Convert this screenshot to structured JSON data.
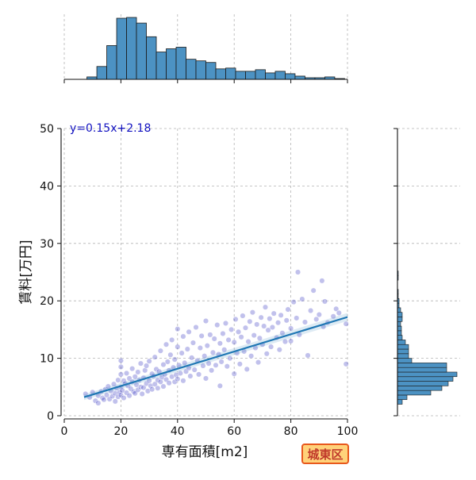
{
  "chart_data": {
    "type": "scatter",
    "xlabel": "専有面積[m2]",
    "ylabel": "賃料[万円]",
    "xlim": [
      0,
      100
    ],
    "ylim": [
      0,
      50
    ],
    "x_ticks": [
      "0",
      "20",
      "40",
      "60",
      "80",
      "100"
    ],
    "y_ticks": [
      "0",
      "10",
      "20",
      "30",
      "40",
      "50"
    ],
    "grid": true,
    "annotation": "y=0.15x+2.18",
    "regression": {
      "slope": 0.15,
      "intercept": 2.18,
      "x_range": [
        7,
        100
      ]
    },
    "point_color": "#2222bb",
    "line_color": "#1f77b4",
    "hist_color": "#4c92c3",
    "marginal_x": {
      "bin_width": 3.5,
      "bin_starts": [
        8,
        11.5,
        15,
        18.5,
        22,
        25.5,
        29,
        32.5,
        36,
        39.5,
        43,
        46.5,
        50,
        53.5,
        57,
        60.5,
        64,
        67.5,
        71,
        74.5,
        78,
        81.5,
        85,
        88.5,
        92,
        95.5
      ],
      "counts": [
        3,
        16,
        42,
        76,
        77,
        70,
        53,
        34,
        38,
        40,
        25,
        23,
        21,
        13,
        14,
        10,
        10,
        12,
        8,
        10,
        7,
        4,
        2,
        2,
        3,
        1
      ]
    },
    "marginal_y": {
      "bin_width": 0.8,
      "bin_starts": [
        2,
        2.8,
        3.6,
        4.4,
        5.2,
        6,
        6.8,
        7.6,
        8.4,
        9.2,
        10,
        10.8,
        11.6,
        12.4,
        13.2,
        14,
        14.8,
        15.6,
        16.4,
        17.2,
        18,
        18.8,
        19.6,
        20.4,
        21.2,
        22,
        22.8,
        23.6,
        24.4
      ],
      "counts": [
        6,
        12,
        42,
        56,
        64,
        70,
        75,
        62,
        62,
        18,
        14,
        14,
        14,
        10,
        6,
        5,
        5,
        4,
        6,
        6,
        4,
        2,
        2,
        1,
        1,
        0,
        0,
        1,
        1
      ]
    },
    "points": [
      [
        7.5,
        3.8
      ],
      [
        9,
        3.2
      ],
      [
        10,
        4.1
      ],
      [
        11,
        2.6
      ],
      [
        12,
        3.5
      ],
      [
        12,
        2.2
      ],
      [
        13,
        4.2
      ],
      [
        13.5,
        3.1
      ],
      [
        14,
        2.8
      ],
      [
        14.5,
        4.6
      ],
      [
        15,
        3.6
      ],
      [
        15.5,
        5.1
      ],
      [
        16,
        2.9
      ],
      [
        16.5,
        4.3
      ],
      [
        17,
        3.4
      ],
      [
        17.5,
        5.5
      ],
      [
        18,
        3.9
      ],
      [
        18,
        2.5
      ],
      [
        18.5,
        4.8
      ],
      [
        19,
        3.3
      ],
      [
        19,
        6.2
      ],
      [
        19.5,
        4.1
      ],
      [
        20,
        5.0
      ],
      [
        20,
        3.6
      ],
      [
        20,
        7.2
      ],
      [
        20,
        8.5
      ],
      [
        20,
        9.6
      ],
      [
        20.5,
        4.4
      ],
      [
        21,
        6.1
      ],
      [
        21,
        3.1
      ],
      [
        21.5,
        5.6
      ],
      [
        22,
        4.0
      ],
      [
        22,
        7.4
      ],
      [
        22.5,
        5.2
      ],
      [
        23,
        3.5
      ],
      [
        23,
        6.5
      ],
      [
        23.5,
        4.7
      ],
      [
        24,
        5.9
      ],
      [
        24,
        8.2
      ],
      [
        24.5,
        4.2
      ],
      [
        25,
        6.8
      ],
      [
        25,
        3.9
      ],
      [
        25.5,
        5.4
      ],
      [
        26,
        7.6
      ],
      [
        26,
        4.5
      ],
      [
        26.5,
        6.2
      ],
      [
        27,
        5.0
      ],
      [
        27,
        9.1
      ],
      [
        27.5,
        3.8
      ],
      [
        28,
        6.6
      ],
      [
        28,
        4.9
      ],
      [
        28.5,
        7.9
      ],
      [
        29,
        5.6
      ],
      [
        29,
        8.7
      ],
      [
        29.5,
        4.3
      ],
      [
        30,
        6.1
      ],
      [
        30,
        9.5
      ],
      [
        30.5,
        5.2
      ],
      [
        31,
        7.3
      ],
      [
        31,
        4.6
      ],
      [
        31.5,
        6.9
      ],
      [
        32,
        5.5
      ],
      [
        32,
        10.2
      ],
      [
        32.5,
        8.1
      ],
      [
        33,
        6.2
      ],
      [
        33,
        4.8
      ],
      [
        33.5,
        7.7
      ],
      [
        34,
        5.9
      ],
      [
        34,
        11.3
      ],
      [
        34.5,
        6.7
      ],
      [
        35,
        8.9
      ],
      [
        35,
        5.1
      ],
      [
        35.5,
        7.2
      ],
      [
        36,
        6.3
      ],
      [
        36,
        12.4
      ],
      [
        36.5,
        9.4
      ],
      [
        37,
        5.7
      ],
      [
        37,
        7.9
      ],
      [
        37.5,
        10.6
      ],
      [
        38,
        6.8
      ],
      [
        38,
        13.2
      ],
      [
        38.5,
        8.4
      ],
      [
        39,
        5.9
      ],
      [
        39,
        9.8
      ],
      [
        39.5,
        7.1
      ],
      [
        40,
        12.0
      ],
      [
        40,
        6.4
      ],
      [
        40,
        15.1
      ],
      [
        40.5,
        8.8
      ],
      [
        41,
        7.4
      ],
      [
        41.5,
        10.9
      ],
      [
        42,
        6.1
      ],
      [
        42,
        13.8
      ],
      [
        42.5,
        9.2
      ],
      [
        43,
        7.7
      ],
      [
        43.5,
        11.6
      ],
      [
        44,
        8.3
      ],
      [
        44,
        14.6
      ],
      [
        44.5,
        6.9
      ],
      [
        45,
        10.1
      ],
      [
        45.5,
        12.7
      ],
      [
        46,
        8.0
      ],
      [
        46.5,
        15.4
      ],
      [
        47,
        9.6
      ],
      [
        47.5,
        7.2
      ],
      [
        48,
        11.8
      ],
      [
        48.5,
        13.9
      ],
      [
        49,
        8.7
      ],
      [
        49.5,
        10.4
      ],
      [
        50,
        16.5
      ],
      [
        50,
        6.5
      ],
      [
        50.5,
        12.2
      ],
      [
        51,
        9.1
      ],
      [
        51.5,
        14.1
      ],
      [
        52,
        7.9
      ],
      [
        52.5,
        11.0
      ],
      [
        53,
        13.4
      ],
      [
        53.5,
        8.8
      ],
      [
        54,
        15.8
      ],
      [
        54.5,
        10.7
      ],
      [
        55,
        12.6
      ],
      [
        55,
        5.2
      ],
      [
        55.5,
        9.4
      ],
      [
        56,
        14.3
      ],
      [
        56.5,
        11.5
      ],
      [
        57,
        16.1
      ],
      [
        57.5,
        8.6
      ],
      [
        58,
        13.2
      ],
      [
        58.5,
        10.0
      ],
      [
        59,
        15.0
      ],
      [
        60,
        12.8
      ],
      [
        60,
        7.3
      ],
      [
        60.5,
        16.8
      ],
      [
        61,
        10.9
      ],
      [
        61.5,
        14.6
      ],
      [
        62,
        9.0
      ],
      [
        62.5,
        13.7
      ],
      [
        63,
        17.4
      ],
      [
        63.5,
        11.2
      ],
      [
        64,
        15.3
      ],
      [
        64.5,
        8.1
      ],
      [
        65,
        12.9
      ],
      [
        65.5,
        16.4
      ],
      [
        66,
        10.4
      ],
      [
        66.5,
        18.0
      ],
      [
        67,
        14.0
      ],
      [
        67.5,
        11.8
      ],
      [
        68,
        15.9
      ],
      [
        68.5,
        9.3
      ],
      [
        69,
        13.5
      ],
      [
        69.5,
        17.1
      ],
      [
        70,
        12.4
      ],
      [
        70.5,
        15.6
      ],
      [
        71,
        18.9
      ],
      [
        71.5,
        10.8
      ],
      [
        72,
        14.9
      ],
      [
        72.5,
        16.9
      ],
      [
        73,
        12.0
      ],
      [
        73.5,
        15.4
      ],
      [
        74,
        17.8
      ],
      [
        75,
        13.6
      ],
      [
        75.5,
        16.2
      ],
      [
        76,
        11.5
      ],
      [
        76.5,
        17.5
      ],
      [
        77,
        14.4
      ],
      [
        78,
        12.9
      ],
      [
        78.5,
        16.6
      ],
      [
        79,
        18.5
      ],
      [
        80,
        15.2
      ],
      [
        80,
        13.0
      ],
      [
        81,
        19.8
      ],
      [
        82,
        17.0
      ],
      [
        82.5,
        25.0
      ],
      [
        83,
        14.1
      ],
      [
        84,
        20.3
      ],
      [
        85,
        16.3
      ],
      [
        86,
        10.5
      ],
      [
        87,
        18.3
      ],
      [
        88,
        21.8
      ],
      [
        89,
        16.8
      ],
      [
        90,
        17.6
      ],
      [
        91,
        23.5
      ],
      [
        91.5,
        15.5
      ],
      [
        92,
        19.9
      ],
      [
        93,
        16.2
      ],
      [
        95,
        17.3
      ],
      [
        96,
        18.6
      ],
      [
        97,
        17.9
      ],
      [
        99.5,
        16.0
      ],
      [
        99.5,
        9.0
      ]
    ]
  },
  "badge": {
    "label": "城東区"
  }
}
